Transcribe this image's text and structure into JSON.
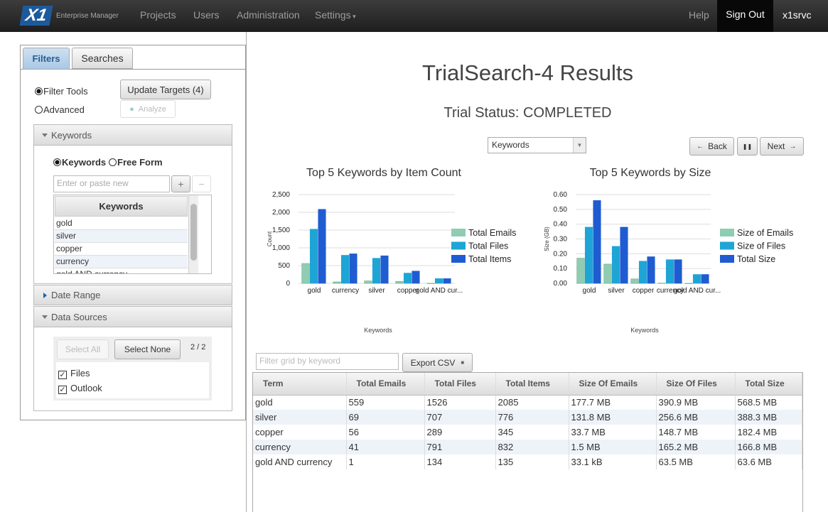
{
  "nav": {
    "logo": "X1",
    "product": "Enterprise Manager",
    "links": [
      "Projects",
      "Users",
      "Administration",
      "Settings"
    ],
    "right": [
      "Help",
      "Sign Out",
      "x1srvc"
    ]
  },
  "sidebar": {
    "tabs": [
      "Filters",
      "Searches"
    ],
    "modes": [
      "Filter Tools",
      "Advanced"
    ],
    "update_button": "Update Targets (4)",
    "analyze_button": "Analyze",
    "keywords_panel": {
      "title": "Keywords",
      "input_modes": [
        "Keywords",
        "Free Form"
      ],
      "placeholder": "Enter or paste new",
      "add": "+",
      "remove": "−",
      "list_header": "Keywords",
      "items": [
        "gold",
        "silver",
        "copper",
        "currency",
        "gold AND currency"
      ]
    },
    "date_range": "Date Range",
    "data_sources": {
      "title": "Data Sources",
      "select_all": "Select All",
      "select_none": "Select None",
      "count": "2 / 2",
      "sources": [
        "Files",
        "Outlook"
      ]
    }
  },
  "main": {
    "title": "TrialSearch-4 Results",
    "status": "Trial Status: COMPLETED",
    "select": "Keywords",
    "back": "Back",
    "next": "Next",
    "filter_placeholder": "Filter grid by keyword",
    "export": "Export CSV"
  },
  "chart_data": [
    {
      "type": "bar",
      "title": "Top 5 Keywords by Item Count",
      "x_label": "Keywords",
      "y_label": "Count",
      "categories": [
        "gold",
        "currency",
        "silver",
        "copper",
        "gold AND cur..."
      ],
      "series": [
        {
          "name": "Total Emails",
          "color": "#8fcdb2",
          "values": [
            559,
            41,
            69,
            56,
            1
          ]
        },
        {
          "name": "Total Files",
          "color": "#1ea5d5",
          "values": [
            1526,
            791,
            707,
            289,
            134
          ]
        },
        {
          "name": "Total Items",
          "color": "#1f5cd2",
          "values": [
            2085,
            832,
            776,
            345,
            135
          ]
        }
      ],
      "ylim": [
        0,
        2500
      ],
      "yticks": [
        0,
        500,
        {
          "value": 1000,
          "label": "1,000"
        },
        {
          "value": 1500,
          "label": "1,500"
        },
        {
          "value": 2000,
          "label": "2,000"
        },
        {
          "value": 2500,
          "label": "2,500"
        }
      ],
      "grid": true,
      "legend": "right"
    },
    {
      "type": "bar",
      "title": "Top 5 Keywords by Size",
      "x_label": "Keywords",
      "y_label": "Size (GB)",
      "categories": [
        "gold",
        "silver",
        "copper",
        "currency",
        "gold AND cur..."
      ],
      "series": [
        {
          "name": "Size of Emails",
          "color": "#8fcdb2",
          "values": [
            0.17,
            0.13,
            0.03,
            0.0015,
            0
          ]
        },
        {
          "name": "Size of Files",
          "color": "#1ea5d5",
          "values": [
            0.38,
            0.25,
            0.15,
            0.16,
            0.06
          ]
        },
        {
          "name": "Total Size",
          "color": "#1f5cd2",
          "values": [
            0.56,
            0.38,
            0.18,
            0.16,
            0.06
          ]
        }
      ],
      "ylim": [
        0,
        0.6
      ],
      "yticks": [
        {
          "value": 0,
          "label": "0.00"
        },
        {
          "value": 0.1,
          "label": "0.10"
        },
        {
          "value": 0.2,
          "label": "0.20"
        },
        {
          "value": 0.3,
          "label": "0.30"
        },
        {
          "value": 0.4,
          "label": "0.40"
        },
        {
          "value": 0.5,
          "label": "0.50"
        },
        {
          "value": 0.6,
          "label": "0.60"
        }
      ],
      "grid": true,
      "legend": "right"
    }
  ],
  "table": {
    "columns": [
      "Term",
      "Total Emails",
      "Total Files",
      "Total Items",
      "Size Of Emails",
      "Size Of Files",
      "Total Size"
    ],
    "rows": [
      [
        "gold",
        "559",
        "1526",
        "2085",
        "177.7 MB",
        "390.9 MB",
        "568.5 MB"
      ],
      [
        "silver",
        "69",
        "707",
        "776",
        "131.8 MB",
        "256.6 MB",
        "388.3 MB"
      ],
      [
        "copper",
        "56",
        "289",
        "345",
        "33.7 MB",
        "148.7 MB",
        "182.4 MB"
      ],
      [
        "currency",
        "41",
        "791",
        "832",
        "1.5 MB",
        "165.2 MB",
        "166.8 MB"
      ],
      [
        "gold AND currency",
        "1",
        "134",
        "135",
        "33.1 kB",
        "63.5 MB",
        "63.6 MB"
      ]
    ]
  }
}
